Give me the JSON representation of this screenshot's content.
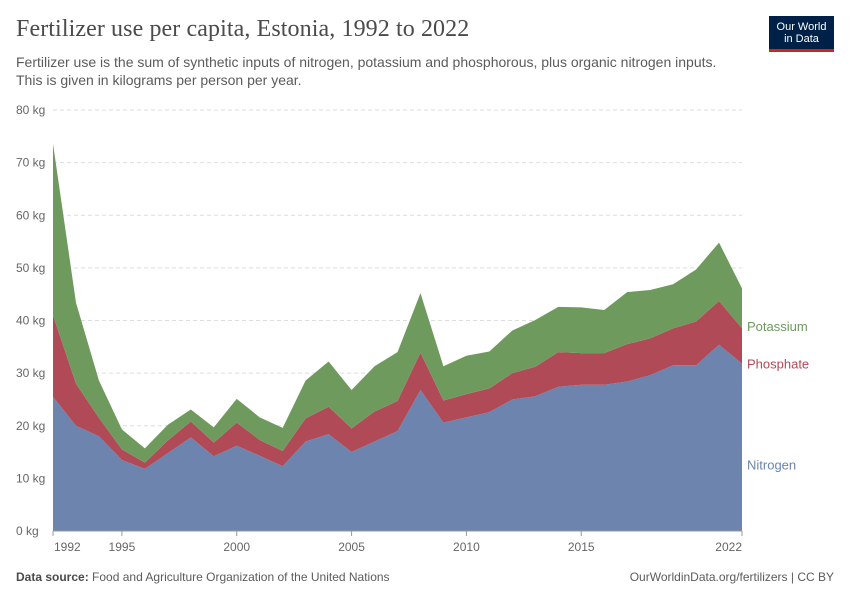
{
  "header": {
    "title": "Fertilizer use per capita, Estonia, 1992 to 2022",
    "subtitle": "Fertilizer use is the sum of synthetic inputs of nitrogen, potassium and phosphorous, plus organic nitrogen inputs. This is given in kilograms per person per year."
  },
  "logo": {
    "line1": "Our World",
    "line2": "in Data"
  },
  "footer": {
    "source_label": "Data source:",
    "source_text": "Food and Agriculture Organization of the United Nations",
    "url": "OurWorldinData.org/fertilizers | CC BY"
  },
  "colors": {
    "nitrogen": "#6d84ae",
    "phosphate": "#b04a56",
    "potassium": "#6f9a5e",
    "grid": "#dddddd",
    "axis_text": "#666666"
  },
  "chart_data": {
    "type": "area",
    "stacked": true,
    "title": "Fertilizer use per capita, Estonia, 1992 to 2022",
    "ylabel": "",
    "xlabel": "",
    "ylim": [
      0,
      80
    ],
    "xlim": [
      1992,
      2022
    ],
    "y_ticks": [
      0,
      10,
      20,
      30,
      40,
      50,
      60,
      70,
      80
    ],
    "y_tick_labels": [
      "0 kg",
      "10 kg",
      "20 kg",
      "30 kg",
      "40 kg",
      "50 kg",
      "60 kg",
      "70 kg",
      "80 kg"
    ],
    "x_ticks": [
      1992,
      1995,
      2000,
      2005,
      2010,
      2015,
      2022
    ],
    "x_tick_labels": [
      "1992",
      "1995",
      "2000",
      "2005",
      "2010",
      "2015",
      "2022"
    ],
    "grid": true,
    "legend_placement": "right-inline",
    "x": [
      1992,
      1993,
      1994,
      1995,
      1996,
      1997,
      1998,
      1999,
      2000,
      2001,
      2002,
      2003,
      2004,
      2005,
      2006,
      2007,
      2008,
      2009,
      2010,
      2011,
      2012,
      2013,
      2014,
      2015,
      2016,
      2017,
      2018,
      2019,
      2020,
      2021,
      2022
    ],
    "series": [
      {
        "name": "Nitrogen",
        "values": [
          25.5,
          20.0,
          18.0,
          13.5,
          11.8,
          14.8,
          17.8,
          14.2,
          16.2,
          14.3,
          12.3,
          17.0,
          18.4,
          15.0,
          17.0,
          19.0,
          26.8,
          20.6,
          21.6,
          22.6,
          25.0,
          25.6,
          27.4,
          27.8,
          27.8,
          28.4,
          29.6,
          31.5,
          31.5,
          35.4,
          31.8
        ]
      },
      {
        "name": "Phosphate",
        "values": [
          15.5,
          8.0,
          3.5,
          2.0,
          1.2,
          2.4,
          3.0,
          2.6,
          4.4,
          3.0,
          2.9,
          4.4,
          5.2,
          4.5,
          5.7,
          5.7,
          7.1,
          4.2,
          4.4,
          4.5,
          5.0,
          5.6,
          6.6,
          6.0,
          6.0,
          7.1,
          7.0,
          7.0,
          8.3,
          8.3,
          6.7
        ]
      },
      {
        "name": "Potassium",
        "values": [
          32.6,
          15.4,
          7.1,
          3.8,
          2.7,
          3.0,
          2.3,
          2.9,
          4.5,
          4.3,
          4.4,
          7.2,
          8.6,
          7.3,
          8.6,
          9.3,
          11.3,
          6.5,
          7.3,
          7.0,
          8.1,
          8.9,
          8.6,
          8.7,
          8.2,
          9.9,
          9.2,
          8.4,
          9.9,
          11.1,
          7.6
        ]
      }
    ],
    "series_labels": [
      "Potassium",
      "Phosphate",
      "Nitrogen"
    ]
  }
}
